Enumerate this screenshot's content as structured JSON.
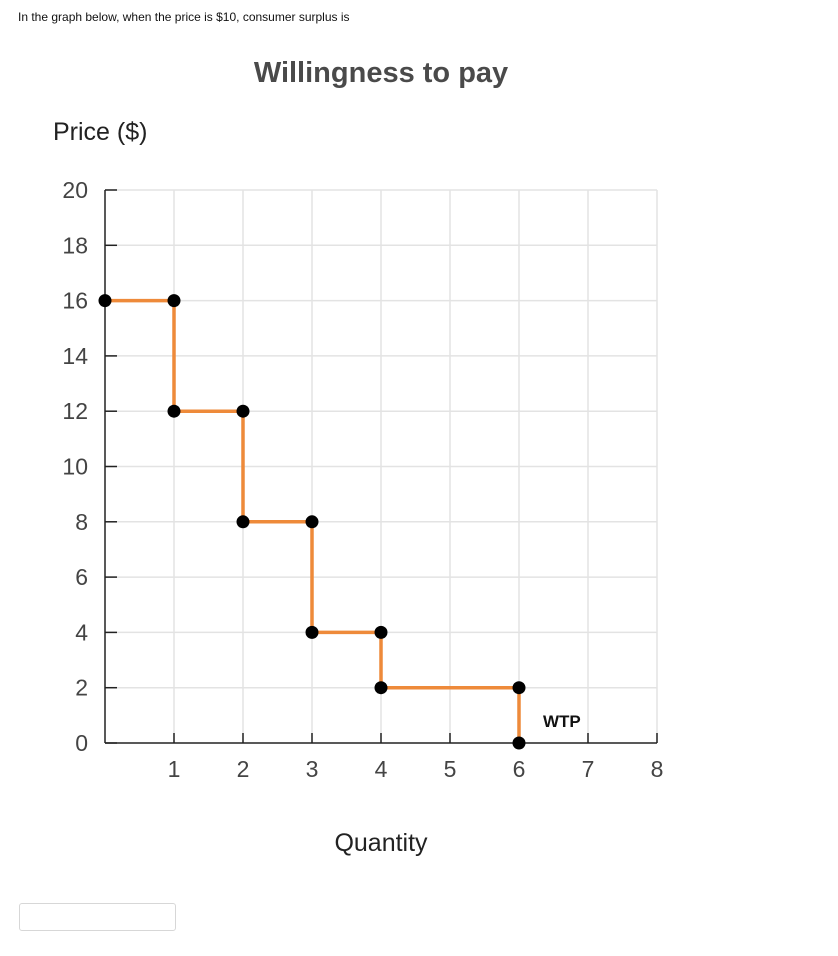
{
  "question": {
    "text": "In the graph below, when the price is $10, consumer surplus is"
  },
  "answer": {
    "value": ""
  },
  "colors": {
    "line": "#ee8a3a",
    "point": "#000000",
    "grid": "#e3e3e3",
    "axis": "#222222",
    "title": "#4a4a4a",
    "tick_text": "#444444"
  },
  "chart_data": {
    "type": "line",
    "title": "Willingness to pay",
    "xlabel": "Quantity",
    "ylabel": "Price ($)",
    "xlim": [
      0,
      8
    ],
    "ylim": [
      0,
      20
    ],
    "x_ticks": [
      1,
      2,
      3,
      4,
      5,
      6,
      7,
      8
    ],
    "y_ticks": [
      0,
      2,
      4,
      6,
      8,
      10,
      12,
      14,
      16,
      18,
      20
    ],
    "grid": true,
    "series": [
      {
        "name": "WTP",
        "points": [
          [
            0,
            16
          ],
          [
            1,
            16
          ],
          [
            1,
            12
          ],
          [
            2,
            12
          ],
          [
            2,
            8
          ],
          [
            3,
            8
          ],
          [
            3,
            4
          ],
          [
            4,
            4
          ],
          [
            4,
            2
          ],
          [
            6,
            2
          ],
          [
            6,
            0
          ]
        ]
      }
    ]
  }
}
